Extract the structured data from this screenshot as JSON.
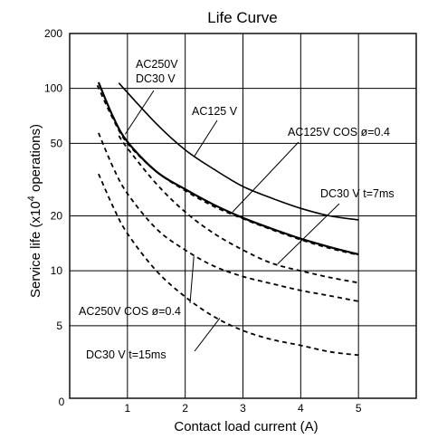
{
  "chart_data": {
    "type": "line",
    "title": "Life Curve",
    "xlabel": "Contact load current (A)",
    "ylabel_main": "Service life (x10",
    "ylabel_sup": "4",
    "ylabel_end": " operations)",
    "xlim": [
      0,
      6
    ],
    "ylim": [
      2,
      200
    ],
    "y_scale": "log",
    "grid": true,
    "x_ticks": [
      {
        "label": "0",
        "value": 0
      },
      {
        "label": "1",
        "value": 1
      },
      {
        "label": "2",
        "value": 2
      },
      {
        "label": "3",
        "value": 3
      },
      {
        "label": "4",
        "value": 4
      },
      {
        "label": "5",
        "value": 5
      }
    ],
    "y_ticks": [
      {
        "label": "200",
        "value": 200
      },
      {
        "label": "100",
        "value": 100
      },
      {
        "label": "50",
        "value": 50
      },
      {
        "label": "20",
        "value": 20
      },
      {
        "label": "10",
        "value": 10
      },
      {
        "label": "5",
        "value": 5
      }
    ],
    "series": [
      {
        "name": "AC125 V",
        "style": "solid",
        "width": 1.6,
        "x": [
          0.85,
          1.5,
          2.0,
          2.5,
          3.0,
          3.5,
          4.0,
          4.5,
          5.0
        ],
        "y": [
          107,
          64,
          46,
          36,
          29,
          25,
          22,
          20,
          19
        ]
      },
      {
        "name": "AC250V DC30 V",
        "style": "solid",
        "width": 2.2,
        "x": [
          0.5,
          0.75,
          1.0,
          1.5,
          2.0,
          2.5,
          3.0,
          3.5,
          4.0,
          4.5,
          5.0
        ],
        "y": [
          108,
          70,
          51,
          35,
          28,
          23,
          19.5,
          17,
          15,
          13.5,
          12.3
        ]
      },
      {
        "name": "AC125V COS ø=0.4",
        "style": "dashed",
        "width": 1.8,
        "x": [
          0.48,
          0.75,
          1.0,
          1.5,
          2.0,
          2.5,
          3.0,
          3.5,
          4.0,
          4.5,
          5.0
        ],
        "y": [
          104,
          68,
          50,
          35,
          27.5,
          22.5,
          19.3,
          16.8,
          14.8,
          13.3,
          12.2
        ]
      },
      {
        "name": "DC30 V t=7ms",
        "style": "dashed",
        "width": 1.8,
        "x": [
          0.85,
          1.0,
          1.5,
          2.0,
          2.5,
          3.0,
          3.5,
          4.0,
          4.5,
          5.0
        ],
        "y": [
          55,
          47,
          30,
          21,
          16,
          13,
          11,
          10,
          9.2,
          8.6
        ]
      },
      {
        "name": "AC250V COS ø=0.4",
        "style": "dashed",
        "width": 1.8,
        "x": [
          0.5,
          0.75,
          1.0,
          1.5,
          2.0,
          2.5,
          3.0,
          3.5,
          4.0,
          4.5,
          5.0
        ],
        "y": [
          57,
          37,
          26.5,
          17,
          13,
          10.6,
          9.3,
          8.5,
          7.8,
          7.3,
          6.8
        ]
      },
      {
        "name": "DC30 V t=15ms",
        "style": "dashed",
        "width": 1.8,
        "x": [
          0.5,
          0.75,
          1.0,
          1.5,
          2.0,
          2.5,
          3.0,
          3.5,
          4.0,
          4.5,
          5.0
        ],
        "y": [
          34,
          22.5,
          16,
          10,
          7.2,
          5.6,
          4.7,
          4.2,
          3.9,
          3.6,
          3.45
        ]
      }
    ],
    "annotations": [
      {
        "name": "label-ac250v-dc30v",
        "lines": [
          "AC250V",
          "DC30 V"
        ],
        "target": {
          "x": 0.96,
          "y": 56
        }
      },
      {
        "name": "label-ac125v",
        "lines": [
          "AC125 V"
        ],
        "target": {
          "x": 2.15,
          "y": 42
        }
      },
      {
        "name": "label-ac125v-cos",
        "lines": [
          "AC125V COS ø=0.4"
        ],
        "target": {
          "x": 2.82,
          "y": 21
        }
      },
      {
        "name": "label-dc30v-7ms",
        "lines": [
          "DC30 V t=7ms"
        ],
        "target": {
          "x": 3.6,
          "y": 10.9
        }
      },
      {
        "name": "label-ac250v-cos",
        "lines": [
          "AC250V COS ø=0.4"
        ],
        "target": {
          "x": 2.15,
          "y": 12
        }
      },
      {
        "name": "label-dc30v-15ms",
        "lines": [
          "DC30 V t=15ms"
        ],
        "target": {
          "x": 2.6,
          "y": 5.5
        }
      }
    ]
  }
}
